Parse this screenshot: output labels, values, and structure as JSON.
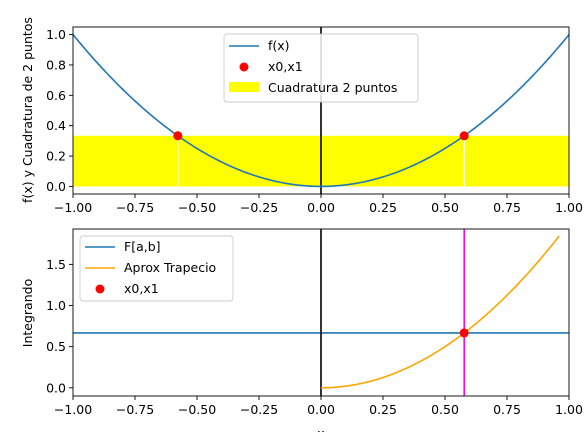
{
  "colors": {
    "fx": "#1f77b4",
    "points": "#ff0000",
    "quad": "#ffff00",
    "trap": "#ffa500",
    "Fab": "#1f77b4",
    "vline": "#ff00ff",
    "axis": "#000000"
  },
  "chart_data": [
    {
      "type": "line",
      "xlim": [
        -1.0,
        1.0
      ],
      "ylim": [
        -0.05,
        1.05
      ],
      "xticks": [
        -1.0,
        -0.75,
        -0.5,
        -0.25,
        0.0,
        0.25,
        0.5,
        0.75,
        1.0
      ],
      "xtick_labels": [
        "−1.00",
        "−0.75",
        "−0.50",
        "−0.25",
        "0.00",
        "0.25",
        "0.50",
        "0.75",
        "1.00"
      ],
      "yticks": [
        0.0,
        0.2,
        0.4,
        0.6,
        0.8,
        1.0
      ],
      "ytick_labels": [
        "0.0",
        "0.2",
        "0.4",
        "0.6",
        "0.8",
        "1.0"
      ],
      "ylabel": "f(x) y Cuadratura de 2 puntos",
      "xlabel": "",
      "grid": false,
      "legend_position": "top-center",
      "legend": [
        "f(x)",
        "x0,x1",
        "Cuadratura 2 puntos"
      ],
      "function": "x^2",
      "points": [
        {
          "x": -0.5774,
          "y": 0.3333
        },
        {
          "x": 0.5774,
          "y": 0.3333
        }
      ],
      "bars": [
        {
          "x0": -1.0,
          "x1": -0.5774,
          "height": 0.3333
        },
        {
          "x0": -0.5774,
          "x1": 0.5774,
          "height": 0.3333
        },
        {
          "x0": 0.5774,
          "x1": 1.0,
          "height": 0.3333
        }
      ],
      "vline_x": 0.0
    },
    {
      "type": "line",
      "xlim": [
        -1.0,
        1.0
      ],
      "ylim": [
        -0.1,
        1.93
      ],
      "xticks": [
        -1.0,
        -0.75,
        -0.5,
        -0.25,
        0.0,
        0.25,
        0.5,
        0.75,
        1.0
      ],
      "xtick_labels": [
        "−1.00",
        "−0.75",
        "−0.50",
        "−0.25",
        "0.00",
        "0.25",
        "0.50",
        "0.75",
        "1.00"
      ],
      "yticks": [
        0.0,
        0.5,
        1.0,
        1.5
      ],
      "ytick_labels": [
        "0.0",
        "0.5",
        "1.0",
        "1.5"
      ],
      "ylabel": "Integrando",
      "xlabel": "x",
      "grid": false,
      "legend_position": "top-left",
      "legend": [
        "F[a,b]",
        "Aprox Trapecio",
        "x0,x1"
      ],
      "Fab_value": 0.6667,
      "trap_x_range": [
        0.0,
        0.96
      ],
      "point": {
        "x": 0.5774,
        "y": 0.6667
      },
      "vline_axis_x": 0.0,
      "vline_x": 0.5774
    }
  ]
}
